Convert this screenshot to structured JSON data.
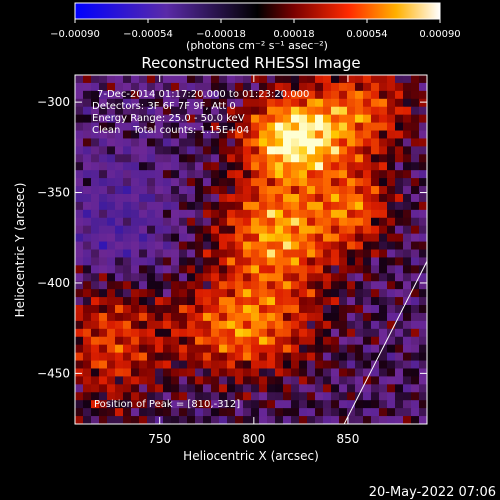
{
  "chart_data": {
    "type": "heatmap",
    "title": "Reconstructed RHESSI Image",
    "xlabel": "Heliocentric X (arcsec)",
    "ylabel": "Heliocentric Y (arcsec)",
    "xlim": [
      705,
      892
    ],
    "ylim": [
      -478,
      -285
    ],
    "x_ticks": [
      750,
      800,
      850
    ],
    "y_ticks": [
      -300,
      -350,
      -400,
      -450
    ],
    "x_tick_labels": [
      "750",
      "800",
      "850"
    ],
    "y_tick_labels": [
      "−300",
      "−350",
      "−400",
      "−450"
    ],
    "colorbar": {
      "range": [
        -0.0009,
        0.0009
      ],
      "ticks": [
        -0.0009,
        -0.00054,
        -0.00018,
        0.00018,
        0.00054,
        0.0009
      ],
      "tick_labels": [
        "−0.00090",
        "−0.00054",
        "−0.00018",
        "0.00018",
        "0.00054",
        "0.00090"
      ],
      "unit_label": "(photons cm⁻² s⁻¹ asec⁻²)"
    },
    "annotations": [
      "7-Dec-2014 01:17:20.000 to 01:23:20.000",
      "Detectors: 3F 6F 7F 9F, Att 0",
      "Energy Range: 25.0 - 50.0 keV",
      "Clean    Total counts: 1.15E+04"
    ],
    "peak_label": "Position of Peak = [810,-312]",
    "peak": [
      810,
      -312
    ],
    "limb_line": [
      [
        848,
        -478
      ],
      [
        892,
        -388
      ]
    ]
  },
  "footer": {
    "timestamp": "20-May-2022 07:06"
  },
  "colors": {
    "background": "#000000",
    "text": "#ffffff"
  }
}
